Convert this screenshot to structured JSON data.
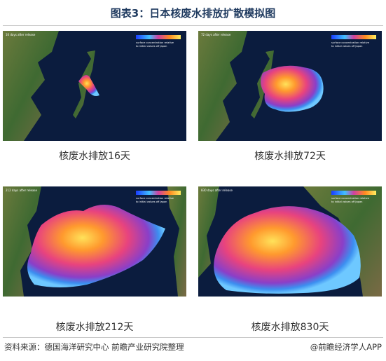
{
  "header": {
    "title": "图表3：日本核废水排放扩散模拟图"
  },
  "panels": [
    {
      "label": "16 days after release",
      "legend": [
        "surface concentration relative",
        "to initial values off Japan"
      ],
      "caption": "核废水排放16天"
    },
    {
      "label": "72 days after release",
      "legend": [
        "surface concentration relative",
        "to initial values off Japan"
      ],
      "caption": "核废水排放72天"
    },
    {
      "label": "212 days after release",
      "legend": [
        "surface concentration relative",
        "to initial values off Japan"
      ],
      "caption": "核废水排放212天"
    },
    {
      "label": "830 days after release",
      "legend": [
        "surface concentration relative",
        "to initial values off Japan"
      ],
      "caption": "核废水排放830天"
    }
  ],
  "footer": {
    "source": "资料来源：德国海洋研究中心 前瞻产业研究院整理",
    "credit": "@前瞻经济学人APP"
  }
}
